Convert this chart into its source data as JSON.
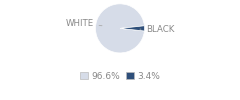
{
  "slices": [
    96.6,
    3.4
  ],
  "labels": [
    "WHITE",
    "BLACK"
  ],
  "colors": [
    "#d6dce8",
    "#2e4f7a"
  ],
  "legend_labels": [
    "96.6%",
    "3.4%"
  ],
  "startangle": -6.12,
  "background_color": "#ffffff",
  "label_fontsize": 6.2,
  "legend_fontsize": 6.5,
  "label_color": "#888888",
  "line_color": "#aaaaaa"
}
